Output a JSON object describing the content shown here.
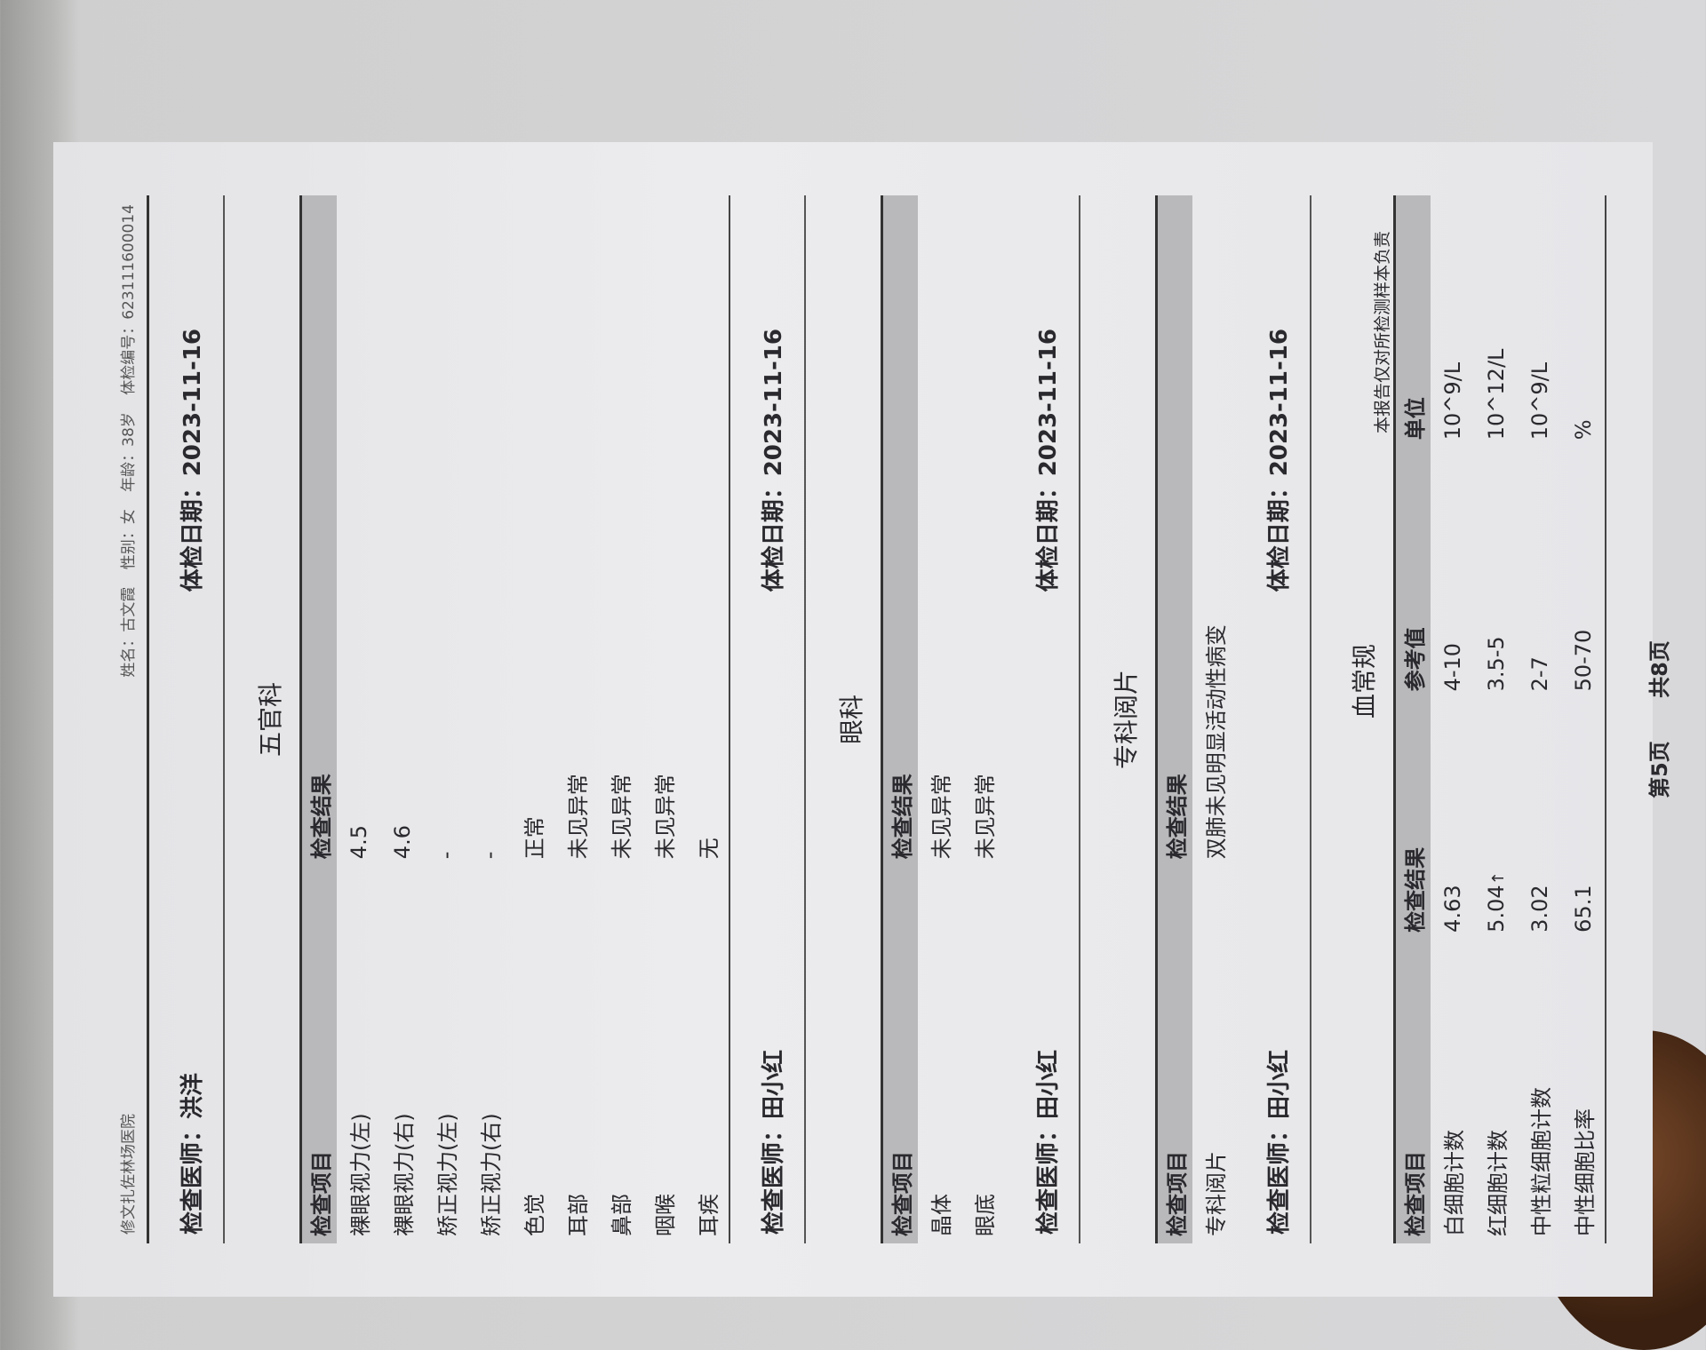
{
  "header": {
    "hospital": "修文扎佐林场医院",
    "name": "姓名：古文霞",
    "gender": "性别：女",
    "age": "年龄：38岁",
    "exam_id": "体检编号：623111600014"
  },
  "sections": [
    {
      "doctor": "检查医师：洪洋",
      "date": "体检日期：2023-11-16"
    },
    {
      "title": "五官科",
      "headers": [
        "检查项目",
        "检查结果"
      ],
      "rows": [
        [
          "裸眼视力(左)",
          "4.5"
        ],
        [
          "裸眼视力(右)",
          "4.6"
        ],
        [
          "矫正视力(左)",
          "-"
        ],
        [
          "矫正视力(右)",
          "-"
        ],
        [
          "色觉",
          "正常"
        ],
        [
          "耳部",
          "未见异常"
        ],
        [
          "鼻部",
          "未见异常"
        ],
        [
          "咽喉",
          "未见异常"
        ],
        [
          "耳疾",
          "无"
        ]
      ],
      "doctor": "检查医师：田小红",
      "date": "体检日期：2023-11-16"
    },
    {
      "title": "眼科",
      "headers": [
        "检查项目",
        "检查结果"
      ],
      "rows": [
        [
          "晶体",
          "未见异常"
        ],
        [
          "眼底",
          "未见异常"
        ]
      ],
      "doctor": "检查医师：田小红",
      "date": "体检日期：2023-11-16"
    },
    {
      "title": "专科阅片",
      "headers": [
        "检查项目",
        "检查结果"
      ],
      "rows": [
        [
          "专科阅片",
          "双肺未见明显活动性病变"
        ]
      ],
      "doctor": "检查医师：田小红",
      "date": "体检日期：2023-11-16"
    },
    {
      "title": "血常规",
      "note": "本报告仅对所检测样本负责",
      "headers": [
        "检查项目",
        "检查结果",
        "参考值",
        "单位"
      ],
      "rows": [
        [
          "白细胞计数",
          "4.63",
          "",
          "4-10",
          "10^9/L"
        ],
        [
          "红细胞计数",
          "5.04",
          "↑",
          "3.5-5",
          "10^12/L"
        ],
        [
          "中性粒细胞计数",
          "3.02",
          "",
          "2-7",
          "10^9/L"
        ],
        [
          "中性细胞比率",
          "65.1",
          "",
          "50-70",
          "%"
        ]
      ]
    }
  ],
  "footer": {
    "page": "第5页",
    "total": "共8页"
  }
}
